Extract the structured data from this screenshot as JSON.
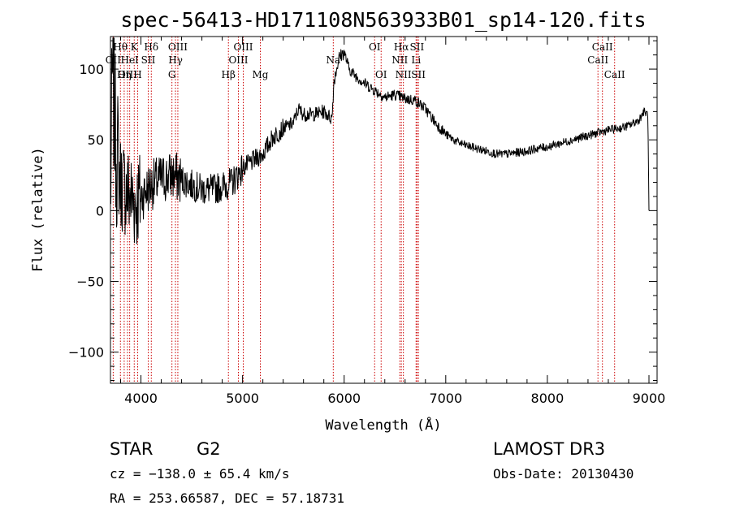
{
  "chart_data": {
    "type": "line",
    "title": "spec-56413-HD171108N563933B01_sp14-120.fits",
    "xlabel": "Wavelength (Å)",
    "ylabel": "Flux (relative)",
    "xlim": [
      3700,
      9080
    ],
    "ylim": [
      -122,
      123
    ],
    "xticks": [
      4000,
      5000,
      6000,
      7000,
      8000,
      9000
    ],
    "xtick_labels": [
      "4000",
      "5000",
      "6000",
      "7000",
      "8000",
      "9000"
    ],
    "yticks": [
      -100,
      -50,
      0,
      50,
      100
    ],
    "ytick_labels": [
      "−100",
      "−50",
      "0",
      "50",
      "100"
    ],
    "grid": false,
    "series": [
      {
        "name": "spectrum",
        "color": "#000000",
        "anchors": [
          [
            3700,
            10
          ],
          [
            3720,
            95
          ],
          [
            3760,
            40
          ],
          [
            3800,
            20
          ],
          [
            3850,
            15
          ],
          [
            3900,
            10
          ],
          [
            3950,
            5
          ],
          [
            4000,
            10
          ],
          [
            4100,
            18
          ],
          [
            4200,
            22
          ],
          [
            4300,
            25
          ],
          [
            4400,
            22
          ],
          [
            4500,
            18
          ],
          [
            4600,
            15
          ],
          [
            4700,
            15
          ],
          [
            4800,
            17
          ],
          [
            4900,
            20
          ],
          [
            5000,
            30
          ],
          [
            5100,
            35
          ],
          [
            5200,
            40
          ],
          [
            5300,
            52
          ],
          [
            5400,
            58
          ],
          [
            5500,
            62
          ],
          [
            5550,
            72
          ],
          [
            5600,
            68
          ],
          [
            5700,
            68
          ],
          [
            5800,
            70
          ],
          [
            5880,
            65
          ],
          [
            5900,
            92
          ],
          [
            5950,
            108
          ],
          [
            6000,
            112
          ],
          [
            6050,
            100
          ],
          [
            6100,
            96
          ],
          [
            6200,
            90
          ],
          [
            6300,
            85
          ],
          [
            6400,
            80
          ],
          [
            6500,
            82
          ],
          [
            6600,
            79
          ],
          [
            6700,
            78
          ],
          [
            6800,
            72
          ],
          [
            6900,
            62
          ],
          [
            7000,
            54
          ],
          [
            7100,
            49
          ],
          [
            7200,
            46
          ],
          [
            7300,
            44
          ],
          [
            7400,
            42
          ],
          [
            7500,
            40
          ],
          [
            7600,
            40
          ],
          [
            7700,
            41
          ],
          [
            7800,
            42
          ],
          [
            7900,
            44
          ],
          [
            8000,
            45
          ],
          [
            8100,
            47
          ],
          [
            8200,
            49
          ],
          [
            8300,
            51
          ],
          [
            8400,
            53
          ],
          [
            8500,
            55
          ],
          [
            8600,
            57
          ],
          [
            8700,
            58
          ],
          [
            8800,
            60
          ],
          [
            8900,
            64
          ],
          [
            8950,
            70
          ],
          [
            8990,
            68
          ],
          [
            9000,
            0
          ]
        ]
      }
    ],
    "line_markers": [
      {
        "name": "Hθ",
        "wavelength": 3798,
        "row": 1
      },
      {
        "name": "K",
        "wavelength": 3934,
        "row": 1
      },
      {
        "name": "Hδ",
        "wavelength": 4102,
        "row": 1
      },
      {
        "name": "OIII",
        "wavelength": 4363,
        "row": 1
      },
      {
        "name": "OIII",
        "wavelength": 5007,
        "row": 1
      },
      {
        "name": "OI",
        "wavelength": 6300,
        "row": 1
      },
      {
        "name": "Hα",
        "wavelength": 6563,
        "row": 1
      },
      {
        "name": "SII",
        "wavelength": 6717,
        "row": 1
      },
      {
        "name": "CaII",
        "wavelength": 8542,
        "row": 1
      },
      {
        "name": "OII",
        "wavelength": 3727,
        "row": 2
      },
      {
        "name": "HeI",
        "wavelength": 3889,
        "row": 2
      },
      {
        "name": "SII",
        "wavelength": 4072,
        "row": 2
      },
      {
        "name": "Hγ",
        "wavelength": 4340,
        "row": 2
      },
      {
        "name": "OIII",
        "wavelength": 4959,
        "row": 2
      },
      {
        "name": "Na",
        "wavelength": 5893,
        "row": 2
      },
      {
        "name": "NII",
        "wavelength": 6548,
        "row": 2
      },
      {
        "name": "Li",
        "wavelength": 6708,
        "row": 2
      },
      {
        "name": "CaII",
        "wavelength": 8498,
        "row": 2
      },
      {
        "name": "OIII",
        "wavelength": 3868,
        "row": 3
      },
      {
        "name": "Hη",
        "wavelength": 3835,
        "row": 3
      },
      {
        "name": "H",
        "wavelength": 3968,
        "row": 3
      },
      {
        "name": "G",
        "wavelength": 4305,
        "row": 3
      },
      {
        "name": "Hβ",
        "wavelength": 4861,
        "row": 3
      },
      {
        "name": "Mg",
        "wavelength": 5175,
        "row": 3
      },
      {
        "name": "OI",
        "wavelength": 6364,
        "row": 3
      },
      {
        "name": "NII",
        "wavelength": 6583,
        "row": 3
      },
      {
        "name": "SII",
        "wavelength": 6731,
        "row": 3
      },
      {
        "name": "CaII",
        "wavelength": 8662,
        "row": 3
      }
    ]
  },
  "info": {
    "class_label": "STAR",
    "subclass_label": "G2",
    "survey_label": "LAMOST DR3",
    "cz_text": "cz = −138.0 ± 65.4 km/s",
    "obs_date_text": "Obs-Date: 20130430",
    "radec_text": "RA = 253.66587, DEC =  57.18731"
  },
  "colors": {
    "spectrum": "#000000",
    "marker_line": "#cc0000",
    "axis": "#000000",
    "background": "#ffffff"
  }
}
